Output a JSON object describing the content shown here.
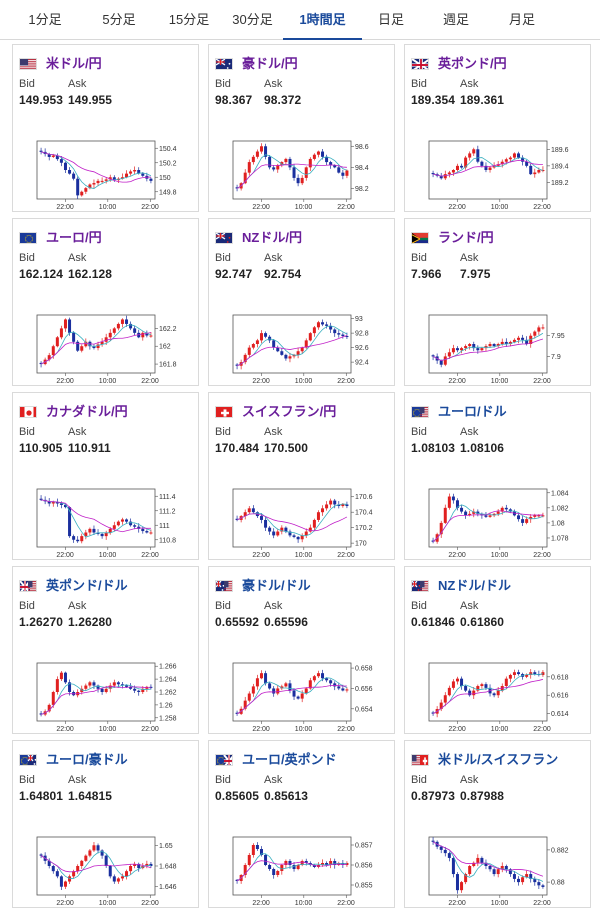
{
  "tabs": [
    {
      "label": "1分足",
      "active": false
    },
    {
      "label": "5分足",
      "active": false
    },
    {
      "label": "15分足",
      "active": false
    },
    {
      "label": "30分足",
      "active": false
    },
    {
      "label": "1時間足",
      "active": true
    },
    {
      "label": "日足",
      "active": false
    },
    {
      "label": "週足",
      "active": false
    },
    {
      "label": "月足",
      "active": false
    }
  ],
  "colors": {
    "up": "#e02020",
    "down": "#1a2f9e",
    "ma1": "#3ab0c0",
    "ma2": "#c020c8",
    "yen": "#6a1e9a",
    "cross": "#1a4a9b",
    "active": "#1a4a9b"
  },
  "labels": {
    "bid": "Bid",
    "ask": "Ask"
  },
  "cards": [
    {
      "pair": "米ドル/円",
      "flag": "us",
      "pair_color": "yen",
      "bid": "149.953",
      "ask": "149.955",
      "chart_data": {
        "type": "candlestick",
        "x_ticks": [
          "22:00",
          "10:00",
          "22:00"
        ],
        "y_ticks": [
          "150.4",
          "150.2",
          "150",
          "149.8"
        ],
        "ylim": [
          149.7,
          150.5
        ],
        "closes": [
          150.35,
          150.32,
          150.28,
          150.3,
          150.25,
          150.2,
          150.1,
          150.05,
          149.98,
          149.75,
          149.8,
          149.85,
          149.9,
          149.92,
          149.95,
          149.95,
          149.97,
          150.0,
          149.96,
          149.98,
          150.0,
          150.05,
          150.08,
          150.1,
          150.05,
          150.02,
          149.98,
          149.95
        ]
      }
    },
    {
      "pair": "豪ドル/円",
      "flag": "au",
      "pair_color": "yen",
      "bid": "98.367",
      "ask": "98.372",
      "chart_data": {
        "type": "candlestick",
        "x_ticks": [
          "22:00",
          "10:00",
          "22:00"
        ],
        "y_ticks": [
          "98.6",
          "98.4",
          "98.2"
        ],
        "ylim": [
          98.1,
          98.65
        ],
        "closes": [
          98.2,
          98.25,
          98.35,
          98.45,
          98.5,
          98.55,
          98.6,
          98.5,
          98.4,
          98.38,
          98.42,
          98.45,
          98.48,
          98.4,
          98.3,
          98.25,
          98.3,
          98.4,
          98.48,
          98.52,
          98.55,
          98.5,
          98.45,
          98.42,
          98.4,
          98.35,
          98.32,
          98.37
        ]
      }
    },
    {
      "pair": "英ポンド/円",
      "flag": "gb",
      "pair_color": "yen",
      "bid": "189.354",
      "ask": "189.361",
      "chart_data": {
        "type": "candlestick",
        "x_ticks": [
          "22:00",
          "10:00",
          "22:00"
        ],
        "y_ticks": [
          "189.6",
          "189.4",
          "189.2"
        ],
        "ylim": [
          189.0,
          189.7
        ],
        "closes": [
          189.3,
          189.28,
          189.25,
          189.3,
          189.32,
          189.35,
          189.4,
          189.38,
          189.5,
          189.55,
          189.6,
          189.45,
          189.4,
          189.35,
          189.38,
          189.4,
          189.42,
          189.45,
          189.48,
          189.5,
          189.55,
          189.5,
          189.45,
          189.4,
          189.3,
          189.32,
          189.35,
          189.35
        ]
      }
    },
    {
      "pair": "ユーロ/円",
      "flag": "eu",
      "pair_color": "yen",
      "bid": "162.124",
      "ask": "162.128",
      "chart_data": {
        "type": "candlestick",
        "x_ticks": [
          "22:00",
          "10:00",
          "22:00"
        ],
        "y_ticks": [
          "162.2",
          "162",
          "161.8"
        ],
        "ylim": [
          161.7,
          162.35
        ],
        "closes": [
          161.8,
          161.85,
          161.9,
          162.0,
          162.1,
          162.2,
          162.3,
          162.15,
          162.05,
          161.95,
          162.0,
          162.05,
          162.0,
          161.98,
          162.02,
          162.05,
          162.1,
          162.15,
          162.2,
          162.25,
          162.3,
          162.25,
          162.2,
          162.15,
          162.1,
          162.15,
          162.12,
          162.12
        ]
      }
    },
    {
      "pair": "NZドル/円",
      "flag": "nz",
      "pair_color": "yen",
      "bid": "92.747",
      "ask": "92.754",
      "chart_data": {
        "type": "candlestick",
        "x_ticks": [
          "22:00",
          "10:00",
          "22:00"
        ],
        "y_ticks": [
          "93",
          "92.8",
          "92.6",
          "92.4"
        ],
        "ylim": [
          92.25,
          93.05
        ],
        "closes": [
          92.35,
          92.4,
          92.5,
          92.6,
          92.65,
          92.7,
          92.8,
          92.75,
          92.7,
          92.6,
          92.55,
          92.5,
          92.45,
          92.48,
          92.5,
          92.55,
          92.6,
          92.7,
          92.8,
          92.88,
          92.95,
          92.92,
          92.9,
          92.85,
          92.8,
          92.78,
          92.76,
          92.75
        ]
      }
    },
    {
      "pair": "ランド/円",
      "flag": "za",
      "pair_color": "yen",
      "bid": "7.966",
      "ask": "7.975",
      "chart_data": {
        "type": "candlestick",
        "x_ticks": [
          "22:00",
          "10:00",
          "22:00"
        ],
        "y_ticks": [
          "7.95",
          "7.9"
        ],
        "ylim": [
          7.86,
          8.0
        ],
        "closes": [
          7.9,
          7.89,
          7.88,
          7.9,
          7.91,
          7.92,
          7.915,
          7.92,
          7.925,
          7.93,
          7.92,
          7.915,
          7.92,
          7.925,
          7.93,
          7.925,
          7.93,
          7.935,
          7.93,
          7.935,
          7.94,
          7.945,
          7.94,
          7.93,
          7.95,
          7.96,
          7.97,
          7.97
        ]
      }
    },
    {
      "pair": "カナダドル/円",
      "flag": "ca",
      "pair_color": "yen",
      "bid": "110.905",
      "ask": "110.911",
      "chart_data": {
        "type": "candlestick",
        "x_ticks": [
          "22:00",
          "10:00",
          "22:00"
        ],
        "y_ticks": [
          "111.4",
          "111.2",
          "111",
          "110.8"
        ],
        "ylim": [
          110.7,
          111.5
        ],
        "closes": [
          111.35,
          111.33,
          111.3,
          111.32,
          111.3,
          111.28,
          111.25,
          110.85,
          110.8,
          110.78,
          110.85,
          110.9,
          110.95,
          110.9,
          110.88,
          110.85,
          110.9,
          110.95,
          111.0,
          111.05,
          111.08,
          111.05,
          111.0,
          110.98,
          110.95,
          110.92,
          110.9,
          110.9
        ]
      }
    },
    {
      "pair": "スイスフラン/円",
      "flag": "ch",
      "pair_color": "yen",
      "bid": "170.484",
      "ask": "170.500",
      "chart_data": {
        "type": "candlestick",
        "x_ticks": [
          "22:00",
          "10:00",
          "22:00"
        ],
        "y_ticks": [
          "170.6",
          "170.4",
          "170.2",
          "170"
        ],
        "ylim": [
          169.95,
          170.7
        ],
        "closes": [
          170.3,
          170.35,
          170.4,
          170.45,
          170.4,
          170.35,
          170.3,
          170.2,
          170.15,
          170.1,
          170.15,
          170.2,
          170.15,
          170.1,
          170.08,
          170.05,
          170.1,
          170.15,
          170.2,
          170.3,
          170.4,
          170.45,
          170.5,
          170.55,
          170.5,
          170.48,
          170.5,
          170.48
        ]
      }
    },
    {
      "pair": "ユーロ/ドル",
      "flag": "eu-us",
      "pair_color": "cross",
      "bid": "1.08103",
      "ask": "1.08106",
      "chart_data": {
        "type": "candlestick",
        "x_ticks": [
          "22:00",
          "10:00",
          "22:00"
        ],
        "y_ticks": [
          "1.084",
          "1.082",
          "1.08",
          "1.078"
        ],
        "ylim": [
          1.0768,
          1.0845
        ],
        "closes": [
          1.0775,
          1.0785,
          1.08,
          1.082,
          1.0835,
          1.083,
          1.082,
          1.0815,
          1.081,
          1.0812,
          1.0815,
          1.0812,
          1.081,
          1.0808,
          1.081,
          1.0812,
          1.0815,
          1.082,
          1.0818,
          1.0815,
          1.081,
          1.0805,
          1.08,
          1.0805,
          1.0808,
          1.081,
          1.081,
          1.081
        ]
      }
    },
    {
      "pair": "英ポンド/ドル",
      "flag": "gb-us",
      "pair_color": "cross",
      "bid": "1.26270",
      "ask": "1.26280",
      "chart_data": {
        "type": "candlestick",
        "x_ticks": [
          "22:00",
          "10:00",
          "22:00"
        ],
        "y_ticks": [
          "1.266",
          "1.264",
          "1.262",
          "1.26",
          "1.258"
        ],
        "ylim": [
          1.2575,
          1.2665
        ],
        "closes": [
          1.2585,
          1.259,
          1.26,
          1.262,
          1.264,
          1.265,
          1.2635,
          1.262,
          1.2615,
          1.262,
          1.2625,
          1.263,
          1.2635,
          1.263,
          1.2625,
          1.262,
          1.2625,
          1.263,
          1.2635,
          1.2632,
          1.263,
          1.2628,
          1.2625,
          1.2622,
          1.262,
          1.2625,
          1.2628,
          1.2627
        ]
      }
    },
    {
      "pair": "豪ドル/ドル",
      "flag": "au-us",
      "pair_color": "cross",
      "bid": "0.65592",
      "ask": "0.65596",
      "chart_data": {
        "type": "candlestick",
        "x_ticks": [
          "22:00",
          "10:00",
          "22:00"
        ],
        "y_ticks": [
          "0.658",
          "0.656",
          "0.654"
        ],
        "ylim": [
          0.6528,
          0.6585
        ],
        "closes": [
          0.6535,
          0.654,
          0.6548,
          0.6555,
          0.6562,
          0.657,
          0.6575,
          0.6565,
          0.656,
          0.6555,
          0.656,
          0.6562,
          0.6565,
          0.6558,
          0.6552,
          0.655,
          0.6555,
          0.656,
          0.6568,
          0.6572,
          0.6575,
          0.657,
          0.6568,
          0.6565,
          0.6562,
          0.656,
          0.6558,
          0.6559
        ]
      }
    },
    {
      "pair": "NZドル/ドル",
      "flag": "nz-us",
      "pair_color": "cross",
      "bid": "0.61846",
      "ask": "0.61860",
      "chart_data": {
        "type": "candlestick",
        "x_ticks": [
          "22:00",
          "10:00",
          "22:00"
        ],
        "y_ticks": [
          "0.618",
          "0.616",
          "0.614"
        ],
        "ylim": [
          0.6132,
          0.6195
        ],
        "closes": [
          0.614,
          0.6145,
          0.6152,
          0.616,
          0.6168,
          0.6175,
          0.6178,
          0.617,
          0.6165,
          0.616,
          0.6165,
          0.617,
          0.6172,
          0.6168,
          0.6162,
          0.616,
          0.6165,
          0.617,
          0.6178,
          0.6182,
          0.6185,
          0.6183,
          0.618,
          0.6182,
          0.6185,
          0.6183,
          0.6182,
          0.6185
        ]
      }
    },
    {
      "pair": "ユーロ/豪ドル",
      "flag": "eu-au",
      "pair_color": "cross",
      "bid": "1.64801",
      "ask": "1.64815",
      "chart_data": {
        "type": "candlestick",
        "x_ticks": [
          "22:00",
          "10:00",
          "22:00"
        ],
        "y_ticks": [
          "1.65",
          "1.648",
          "1.646"
        ],
        "ylim": [
          1.6452,
          1.6508
        ],
        "closes": [
          1.649,
          1.6485,
          1.648,
          1.6475,
          1.647,
          1.646,
          1.6465,
          1.647,
          1.6475,
          1.648,
          1.6485,
          1.649,
          1.6495,
          1.65,
          1.6495,
          1.649,
          1.648,
          1.647,
          1.6465,
          1.6468,
          1.647,
          1.6475,
          1.648,
          1.6482,
          1.6478,
          1.648,
          1.6482,
          1.648
        ]
      }
    },
    {
      "pair": "ユーロ/英ポンド",
      "flag": "eu-gb",
      "pair_color": "cross",
      "bid": "0.85605",
      "ask": "0.85613",
      "chart_data": {
        "type": "candlestick",
        "x_ticks": [
          "22:00",
          "10:00",
          "22:00"
        ],
        "y_ticks": [
          "0.857",
          "0.856",
          "0.855"
        ],
        "ylim": [
          0.8545,
          0.8574
        ],
        "closes": [
          0.8552,
          0.8555,
          0.856,
          0.8565,
          0.857,
          0.8568,
          0.8565,
          0.856,
          0.8558,
          0.8555,
          0.8557,
          0.856,
          0.8562,
          0.856,
          0.8558,
          0.856,
          0.8562,
          0.8561,
          0.856,
          0.8559,
          0.856,
          0.8561,
          0.856,
          0.8562,
          0.856,
          0.8561,
          0.856,
          0.8561
        ]
      }
    },
    {
      "pair": "米ドル/スイスフラン",
      "flag": "us-ch",
      "pair_color": "cross",
      "bid": "0.87973",
      "ask": "0.87988",
      "chart_data": {
        "type": "candlestick",
        "x_ticks": [
          "22:00",
          "10:00",
          "22:00"
        ],
        "y_ticks": [
          "0.882",
          "0.88"
        ],
        "ylim": [
          0.8792,
          0.8828
        ],
        "closes": [
          0.8825,
          0.8822,
          0.882,
          0.8818,
          0.8815,
          0.8805,
          0.8795,
          0.88,
          0.8805,
          0.881,
          0.8812,
          0.8815,
          0.8812,
          0.881,
          0.8808,
          0.8805,
          0.8808,
          0.881,
          0.8808,
          0.8805,
          0.8802,
          0.88,
          0.8803,
          0.8805,
          0.8802,
          0.88,
          0.8798,
          0.8797
        ]
      }
    }
  ]
}
